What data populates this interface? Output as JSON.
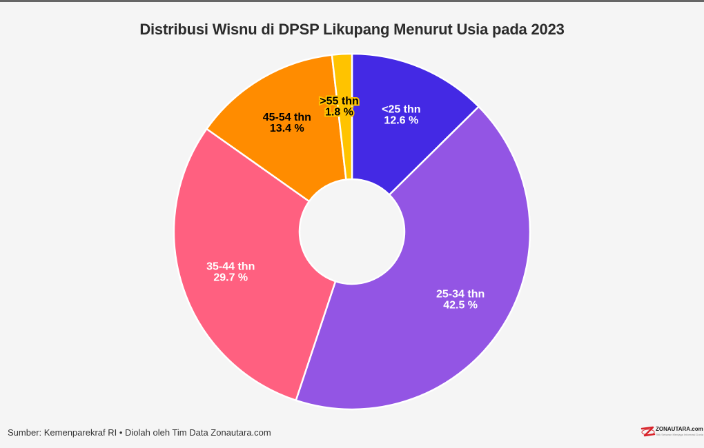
{
  "chart_data": {
    "type": "pie",
    "subtype": "donut",
    "title": "Distribusi Wisnu di DPSP Likupang Menurut Usia pada 2023",
    "slices": [
      {
        "label": "<25 thn",
        "value": 12.6,
        "value_text": "12.6 %",
        "color": "#4429e4",
        "label_color": "#ffffff"
      },
      {
        "label": "25-34 thn",
        "value": 42.5,
        "value_text": "42.5 %",
        "color": "#9355e4",
        "label_color": "#ffffff"
      },
      {
        "label": "35-44 thn",
        "value": 29.7,
        "value_text": "29.7 %",
        "color": "#ff6080",
        "label_color": "#ffffff"
      },
      {
        "label": "45-54 thn",
        "value": 13.4,
        "value_text": "13.4 %",
        "color": "#ff8c00",
        "label_color": "#000000"
      },
      {
        "label": ">55 thn",
        "value": 1.8,
        "value_text": "1.8 %",
        "color": "#ffc300",
        "label_color": "#000000"
      }
    ]
  },
  "footer": {
    "source": "Sumber: Kemenparekraf RI • Diolah oleh Tim Data Zonautara.com"
  },
  "logo": {
    "name": "ZONAUTARA.com",
    "tagline": "Titik Sebaran Menjaga Informasi Dunia"
  }
}
